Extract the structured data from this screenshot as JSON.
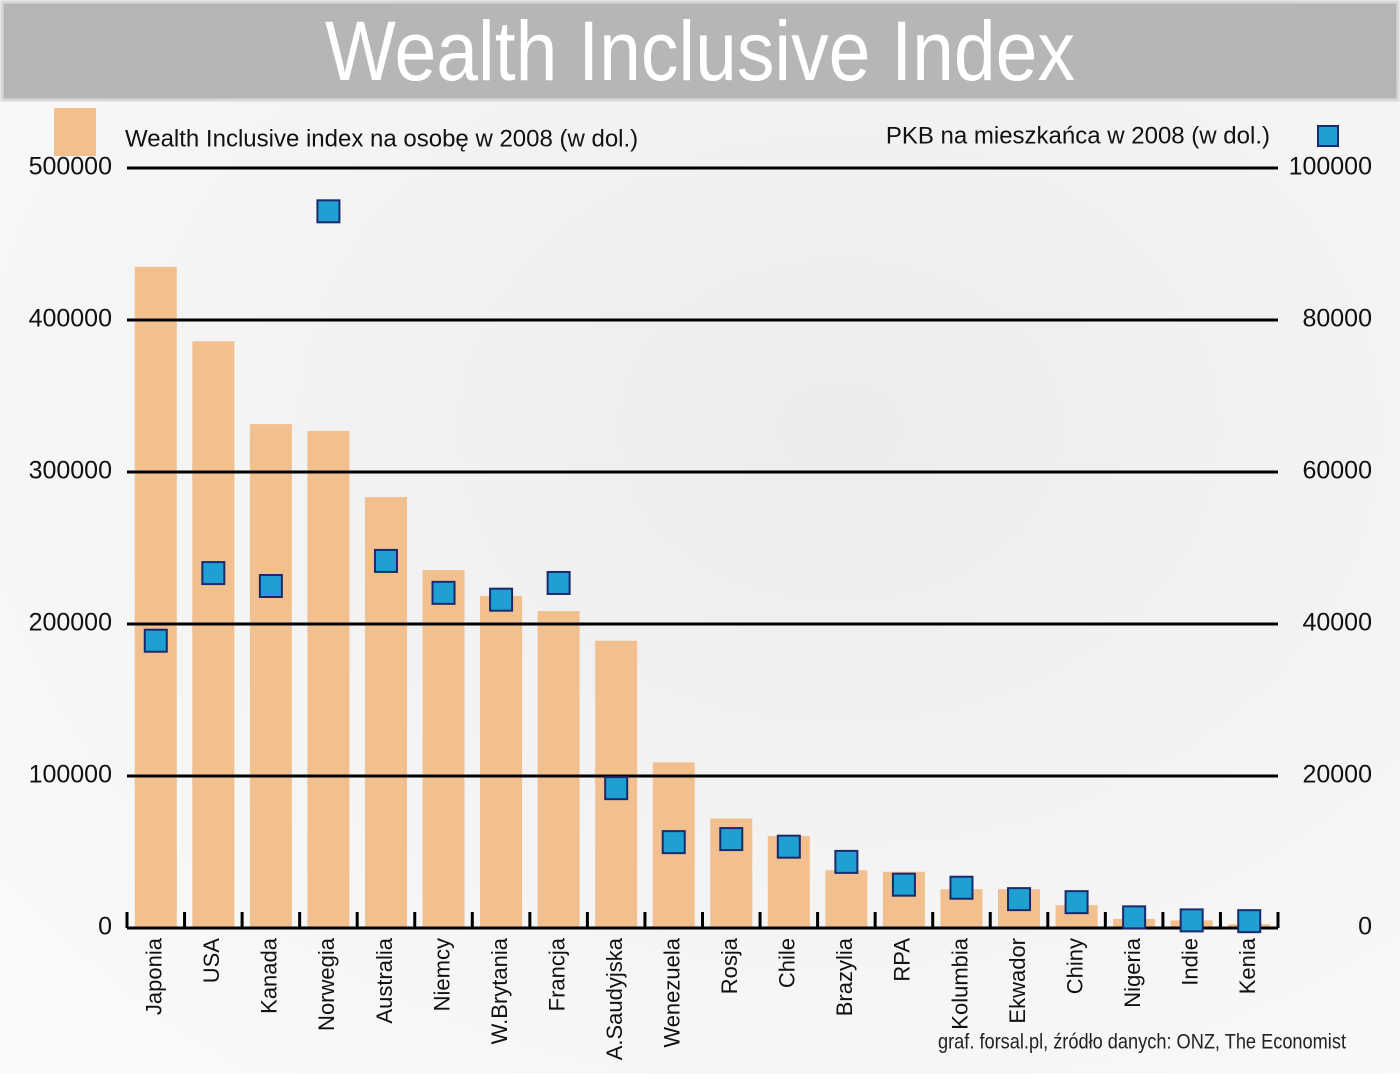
{
  "chart_data": {
    "type": "bar",
    "title": "Wealth Inclusive Index",
    "note": "graf. forsal.pl, źródło danych: ONZ, The Economist",
    "categories": [
      "Japonia",
      "USA",
      "Kanada",
      "Norwegia",
      "Australia",
      "Niemcy",
      "W.Brytania",
      "Francja",
      "A.Saudyjska",
      "Wenezuela",
      "Rosja",
      "Chile",
      "Brazylia",
      "RPA",
      "Kolumbia",
      "Ekwador",
      "Chiny",
      "Nigeria",
      "Indie",
      "Kenia"
    ],
    "series": [
      {
        "name": "Wealth Inclusive index na osobę w 2008 (w dol.)",
        "type": "bar",
        "color": "#f2bf8e",
        "values": [
          435000,
          386000,
          331500,
          327000,
          283500,
          235500,
          218500,
          208500,
          189000,
          109000,
          72000,
          60500,
          38000,
          37000,
          25500,
          25500,
          15000,
          6000,
          5000,
          2500
        ]
      },
      {
        "name": "PKB na mieszkańca w 2008 (w dol.)",
        "type": "scatter",
        "axis": "y2",
        "color": "#1fa0d2",
        "values": [
          37800,
          46700,
          45000,
          94300,
          48300,
          44100,
          43200,
          45400,
          18400,
          11300,
          11700,
          10700,
          8700,
          5700,
          5300,
          3800,
          3400,
          1400,
          1000,
          900
        ]
      }
    ],
    "ylim": [
      0,
      500000
    ],
    "yticks": [
      0,
      100000,
      200000,
      300000,
      400000,
      500000
    ],
    "y2lim": [
      0,
      100000
    ],
    "y2ticks": [
      0,
      20000,
      40000,
      60000,
      80000,
      100000
    ],
    "grid": true
  }
}
